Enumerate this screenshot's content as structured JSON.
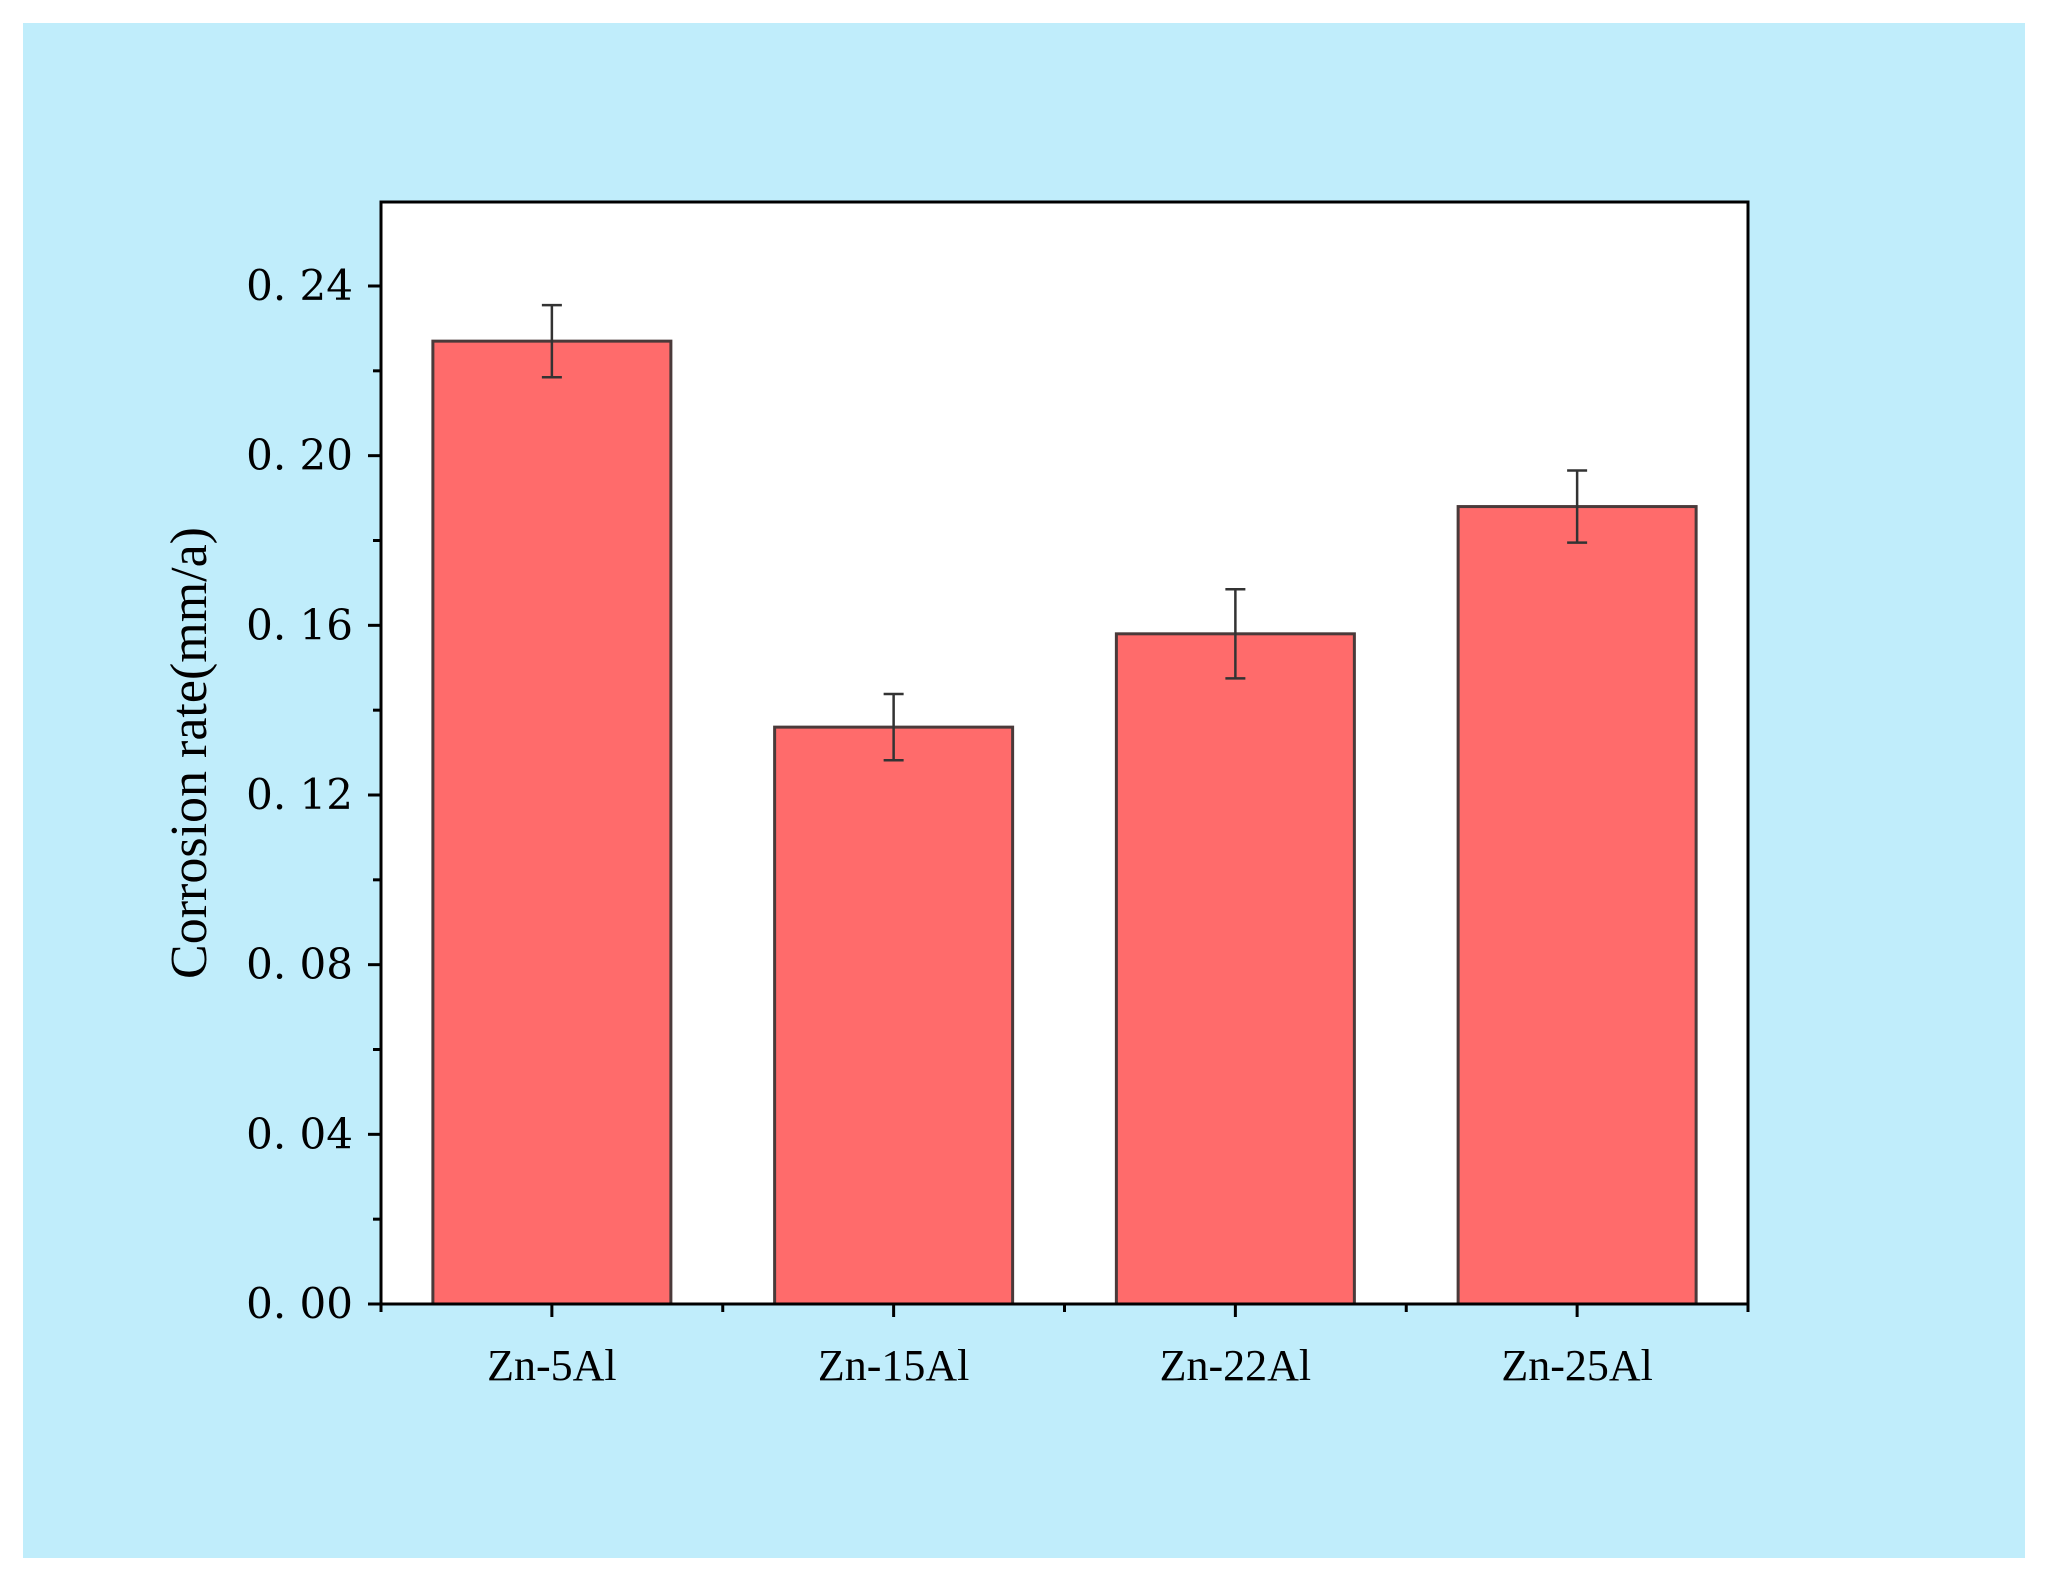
{
  "chart_data": {
    "type": "bar",
    "categories": [
      "Zn-5Al",
      "Zn-15Al",
      "Zn-22Al",
      "Zn-25Al"
    ],
    "values": [
      0.227,
      0.136,
      0.158,
      0.188
    ],
    "errors": [
      0.0085,
      0.0078,
      0.0105,
      0.0085
    ],
    "ylabel": "Corrosion rate(mm/a)",
    "xlabel": "",
    "ylim": [
      0,
      0.26
    ],
    "yticks": [
      0.0,
      0.04,
      0.08,
      0.12,
      0.16,
      0.2,
      0.24
    ],
    "ytick_labels": [
      "0. 00",
      "0. 04",
      "0. 08",
      "0. 12",
      "0. 16",
      "0. 20",
      "0. 24"
    ],
    "grid": false,
    "colors": {
      "background": "#c0edfb",
      "plot_area": "#ffffff",
      "bar_fill": "#ff6b6b",
      "bar_edge": "#4a3a3a",
      "axis": "#000000",
      "error_bar": "#333333"
    }
  }
}
